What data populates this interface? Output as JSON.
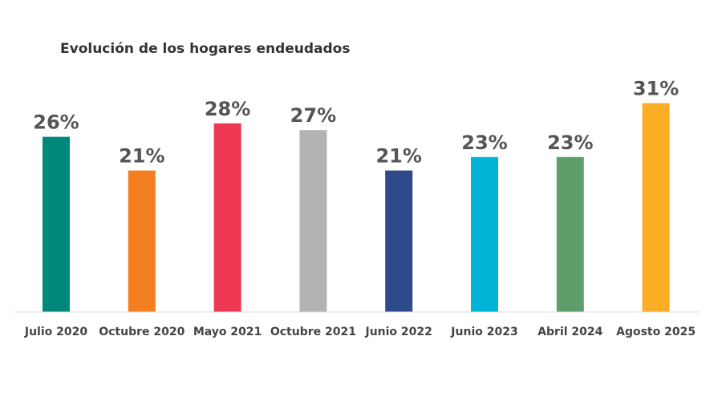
{
  "chart_data": {
    "type": "bar",
    "title": "Evolución de los hogares endeudados",
    "xlabel": "",
    "ylabel": "",
    "ylim": [
      0,
      35
    ],
    "grid": false,
    "categories": [
      "Julio 2020",
      "Octubre 2020",
      "Mayo 2021",
      "Octubre 2021",
      "Junio 2022",
      "Junio 2023",
      "Abril 2024",
      "Agosto 2025"
    ],
    "values": [
      26,
      21,
      28,
      27,
      21,
      23,
      23,
      31
    ],
    "data_labels": [
      "26%",
      "21%",
      "28%",
      "27%",
      "21%",
      "23%",
      "23%",
      "31%"
    ],
    "colors": [
      "#00897b",
      "#f47f20",
      "#ee3752",
      "#b1b3b5",
      "#2f4a8a",
      "#00b4d8",
      "#5e9e6a",
      "#fbae26"
    ],
    "axis_color": "#dddddd"
  }
}
